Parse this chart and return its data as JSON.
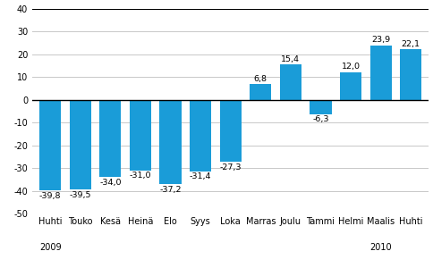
{
  "categories": [
    "Huhti",
    "Touko",
    "Kesä",
    "Heinä",
    "Elo",
    "Syys",
    "Loka",
    "Marras",
    "Joulu",
    "Tammi",
    "Helmi",
    "Maalis",
    "Huhti"
  ],
  "values": [
    -39.8,
    -39.5,
    -34.0,
    -31.0,
    -37.2,
    -31.4,
    -27.3,
    6.8,
    15.4,
    -6.3,
    12.0,
    23.9,
    22.1
  ],
  "value_labels": [
    "-39,8",
    "-39,5",
    "-34,0",
    "-31,0",
    "-37,2",
    "-31,4",
    "-27,3",
    "6,8",
    "15,4",
    "-6,3",
    "12,0",
    "23,9",
    "22,1"
  ],
  "bar_color": "#1a9cd8",
  "ylim": [
    -50,
    40
  ],
  "yticks": [
    -50,
    -40,
    -30,
    -20,
    -10,
    0,
    10,
    20,
    30,
    40
  ],
  "background_color": "#ffffff",
  "grid_color": "#c8c8c8",
  "tick_fontsize": 7.0,
  "value_fontsize": 6.8,
  "year_below_idx": [
    0,
    11
  ],
  "year_labels_text": [
    "2009",
    "2010"
  ]
}
